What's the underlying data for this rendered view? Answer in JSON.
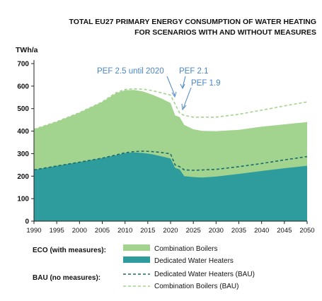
{
  "chart_data": {
    "type": "area",
    "title_lines": [
      "TOTAL EU27 PRIMARY ENERGY CONSUMPTION OF WATER HEATING",
      "FOR SCENARIOS WITH AND WITHOUT MEASURES"
    ],
    "unit": "TWh/a",
    "ylim": [
      0,
      700
    ],
    "yticks": [
      "0",
      "100",
      "200",
      "300",
      "400",
      "500",
      "600",
      "700"
    ],
    "xlim": [
      1990,
      2050
    ],
    "xticks": [
      "1990",
      "1995",
      "2000",
      "2005",
      "2010",
      "2015",
      "2020",
      "2025",
      "2030",
      "2035",
      "2040",
      "2045",
      "2050"
    ],
    "grid": false,
    "legend_position": "bottom",
    "legend_groups": [
      {
        "label": "ECO (with measures):",
        "items": [
          "Combination Boilers",
          "Dedicated Water Heaters"
        ]
      },
      {
        "label": "BAU (no measures):",
        "items": [
          "Dedicated Water Heaters (BAU)",
          "Combination Boilers (BAU)"
        ]
      }
    ],
    "annotations": [
      {
        "text": "PEF 2.5 until 2020",
        "x": 2018,
        "y": 584
      },
      {
        "text": "PEF 2.1",
        "x": 2022.5,
        "y": 510
      },
      {
        "text": "PEF 1.9",
        "x": 2022.8,
        "y": 470
      }
    ],
    "series": [
      {
        "name": "Dedicated Water Heaters",
        "style": "area",
        "color": "#2e9c9c",
        "x": [
          1990,
          1995,
          2000,
          2005,
          2008,
          2010,
          2012,
          2014,
          2016,
          2018,
          2020,
          2021,
          2022,
          2023,
          2025,
          2027,
          2030,
          2035,
          2040,
          2045,
          2050
        ],
        "values": [
          228,
          245,
          262,
          280,
          293,
          302,
          305,
          303,
          297,
          288,
          278,
          237,
          230,
          200,
          196,
          194,
          198,
          210,
          223,
          235,
          246
        ]
      },
      {
        "name": "Combination Boilers",
        "style": "area",
        "color": "#a3d48f",
        "x": [
          1990,
          1995,
          2000,
          2005,
          2008,
          2010,
          2012,
          2014,
          2016,
          2018,
          2020,
          2021,
          2022,
          2023,
          2025,
          2027,
          2030,
          2035,
          2040,
          2045,
          2050
        ],
        "totals": [
          408,
          442,
          482,
          530,
          568,
          582,
          583,
          576,
          562,
          545,
          525,
          470,
          462,
          428,
          408,
          401,
          400,
          406,
          420,
          430,
          440
        ]
      },
      {
        "name": "Dedicated Water Heaters (BAU)",
        "style": "dashed",
        "color": "#1b6b6b",
        "x": [
          1990,
          1995,
          2000,
          2005,
          2008,
          2010,
          2012,
          2014,
          2016,
          2018,
          2020,
          2021,
          2022,
          2023,
          2025,
          2030,
          2035,
          2040,
          2045,
          2050
        ],
        "values": [
          228,
          245,
          262,
          280,
          294,
          304,
          309,
          311,
          309,
          305,
          299,
          250,
          242,
          228,
          226,
          230,
          242,
          256,
          272,
          287
        ]
      },
      {
        "name": "Combination Boilers (BAU)",
        "style": "dashed",
        "color": "#a3d48f",
        "x": [
          1990,
          1995,
          2000,
          2005,
          2008,
          2010,
          2012,
          2014,
          2016,
          2018,
          2020,
          2021,
          2022,
          2023,
          2025,
          2030,
          2035,
          2040,
          2045,
          2050
        ],
        "values": [
          408,
          442,
          482,
          530,
          570,
          585,
          588,
          586,
          580,
          570,
          560,
          520,
          480,
          470,
          462,
          462,
          475,
          493,
          512,
          530
        ]
      }
    ]
  }
}
